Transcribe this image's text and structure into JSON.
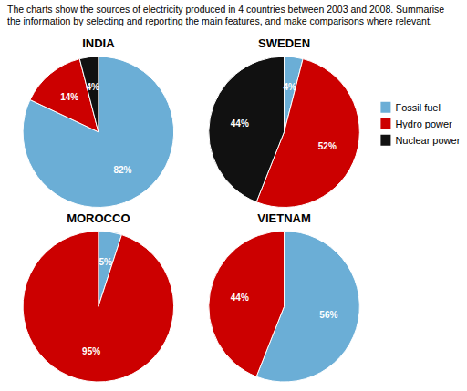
{
  "title": [
    "The charts show the sources of electricity produced in 4 countries between 2003 and 2008. Summarise",
    "the information by selecting and reporting the main features, and make comparisons where relevant."
  ],
  "chart_data": [
    {
      "type": "pie",
      "title": "INDIA",
      "categories": [
        "Fossil fuel",
        "Hydro power",
        "Nuclear power"
      ],
      "values": [
        82,
        14,
        4
      ],
      "value_labels": [
        "82%",
        "14%",
        "4%"
      ],
      "colors": [
        "#6baed6",
        "#cc0000",
        "#111111"
      ],
      "data_labels": true,
      "legend": "right"
    },
    {
      "type": "pie",
      "title": "SWEDEN",
      "categories": [
        "Fossil fuel",
        "Hydro power",
        "Nuclear power"
      ],
      "values": [
        4,
        52,
        44
      ],
      "value_labels": [
        "4%",
        "52%",
        "44%"
      ],
      "colors": [
        "#6baed6",
        "#cc0000",
        "#111111"
      ],
      "data_labels": true,
      "legend": "right"
    },
    {
      "type": "pie",
      "title": "MOROCCO",
      "categories": [
        "Fossil fuel",
        "Hydro power"
      ],
      "values": [
        5,
        95
      ],
      "value_labels": [
        "5%",
        "95%"
      ],
      "colors": [
        "#6baed6",
        "#cc0000"
      ],
      "data_labels": true,
      "legend": "right"
    },
    {
      "type": "pie",
      "title": "VIETNAM",
      "categories": [
        "Fossil fuel",
        "Hydro power"
      ],
      "values": [
        56,
        44
      ],
      "value_labels": [
        "56%",
        "44%"
      ],
      "colors": [
        "#6baed6",
        "#cc0000"
      ],
      "data_labels": true,
      "legend": "right"
    }
  ]
}
